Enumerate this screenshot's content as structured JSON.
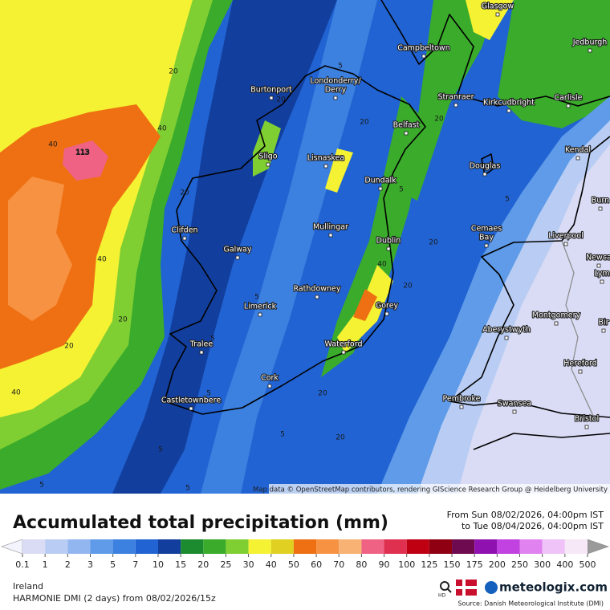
{
  "map": {
    "cities": [
      "Glasgow",
      "Campbeltown",
      "Jedburgh",
      "Burtonport",
      "Londonderry/",
      "Derry",
      "Stranraer",
      "Kirkcudbright",
      "Carlisle",
      "Belfast",
      "Kendal",
      "Sligo",
      "Lisnaskea",
      "Dundalk",
      "Douglas",
      "Burn",
      "Clifden",
      "Mullingar",
      "Liverpool",
      "Cemaes",
      "Bay",
      "Galway",
      "Dublin",
      "Newca",
      "Lym",
      "Rathdowney",
      "Limerick",
      "Gorey",
      "Montgomery",
      "Bir",
      "Aberystwyth",
      "Tralee",
      "Waterford",
      "Hereford",
      "Cork",
      "Pembroke",
      "Swansea",
      "Castletownbere",
      "Bristol"
    ],
    "contour_labels": [
      "113",
      "40",
      "40",
      "40",
      "20",
      "20",
      "20",
      "40",
      "20",
      "5",
      "5",
      "5",
      "20",
      "5",
      "20",
      "40",
      "20",
      "5",
      "20",
      "5",
      "5",
      "20",
      "5",
      "20",
      "5",
      "5",
      "20"
    ],
    "credit": "Map data © OpenStreetMap contributors, rendering GIScience Research Group @ Heidelberg University"
  },
  "header": {
    "title": "Accumulated total precipitation (mm)",
    "from": "From Sun 08/02/2026, 04:00pm IST",
    "to": "to Tue 08/04/2026, 04:00pm IST"
  },
  "legend": {
    "ticks": [
      0.1,
      1,
      2,
      3,
      5,
      7,
      10,
      15,
      20,
      25,
      30,
      40,
      50,
      60,
      70,
      80,
      90,
      100,
      125,
      150,
      175,
      200,
      250,
      300,
      400,
      500
    ],
    "colors": [
      "#d9dcf4",
      "#b9cdf4",
      "#92b6ef",
      "#5f9be8",
      "#3c80e0",
      "#2163d2",
      "#123f9e",
      "#1c8a2f",
      "#3aab2b",
      "#80cf32",
      "#f4f232",
      "#dfd022",
      "#ee7012",
      "#f79242",
      "#f7b274",
      "#ef6283",
      "#df3050",
      "#bf0012",
      "#8e0012",
      "#6e0a50",
      "#8f12b0",
      "#c142e0",
      "#e082f0",
      "#efc2f8",
      "#f7e8f8"
    ],
    "under_color": "#f4f4ff",
    "over_color": "#9a9a9a"
  },
  "footer": {
    "region": "Ireland",
    "model": "HARMONIE DMI (2 days) from 08/02/2026/15z",
    "hd": "HD",
    "brand": "meteologix.com",
    "source": "Source: Danish Meteorological Institute (DMI)"
  }
}
